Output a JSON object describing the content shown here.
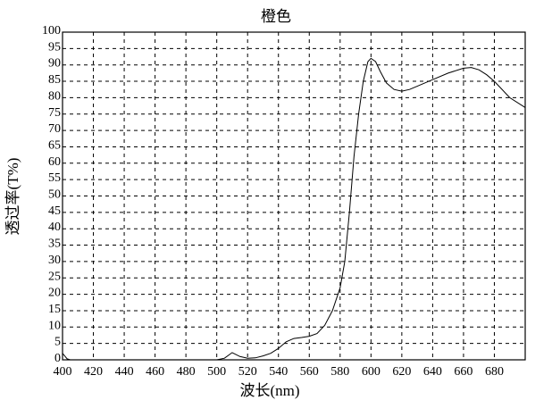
{
  "chart_data": {
    "type": "line",
    "title": "橙色",
    "xlabel": "波长(nm)",
    "ylabel": "透过率(T%)",
    "xlim": [
      400,
      700
    ],
    "ylim": [
      0,
      100
    ],
    "xticks": [
      400,
      420,
      440,
      460,
      480,
      500,
      520,
      540,
      560,
      580,
      600,
      620,
      640,
      660,
      680
    ],
    "yticks": [
      0,
      5,
      10,
      15,
      20,
      25,
      30,
      35,
      40,
      45,
      50,
      55,
      60,
      65,
      70,
      75,
      80,
      85,
      90,
      95,
      100
    ],
    "grid": true,
    "grid_style": "dashed",
    "line_color": "#000000",
    "series": [
      {
        "x": [
          400,
          403,
          405,
          450,
          500,
          505,
          510,
          515,
          520,
          525,
          530,
          535,
          540,
          545,
          550,
          555,
          560,
          565,
          570,
          575,
          580,
          583,
          586,
          589,
          592,
          595,
          598,
          600,
          603,
          606,
          610,
          615,
          620,
          625,
          630,
          640,
          650,
          660,
          665,
          670,
          675,
          680,
          690,
          700
        ],
        "y": [
          2,
          0.3,
          0,
          0,
          0,
          0.5,
          2.2,
          1,
          0.5,
          0.6,
          1.2,
          2,
          3.5,
          5.5,
          6.5,
          6.8,
          7.2,
          8,
          10.5,
          15,
          22,
          30,
          45,
          62,
          75,
          85,
          91,
          92,
          91,
          88,
          84.5,
          82.5,
          82,
          82.5,
          83.5,
          85.5,
          87.5,
          89,
          89.2,
          88.5,
          87,
          85,
          80,
          77
        ]
      }
    ]
  }
}
